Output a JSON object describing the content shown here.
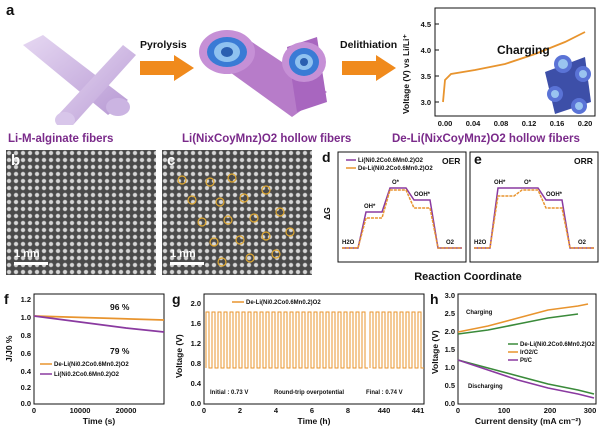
{
  "panels": {
    "a": "a",
    "b": "b",
    "c": "c",
    "d": "d",
    "e": "e",
    "f": "f",
    "g": "g",
    "h": "h"
  },
  "row_a": {
    "step1_label": "Pyrolysis",
    "step2_label": "Delithiation",
    "caption1": "Li-M-alginate fibers",
    "caption2": "Li(NixCoyMnz)O2 hollow fibers",
    "caption3": "De-Li(NixCoyMnz)O2 hollow fibers",
    "inset_title": "Charging",
    "inset_ylabel": "Voltage (V) vs Li/Li⁺",
    "inset_yticks": [
      "3.0",
      "3.5",
      "4.0",
      "4.5"
    ],
    "inset_xticks": [
      "0.00",
      "0.04",
      "0.08",
      "0.12",
      "0.16",
      "0.20"
    ]
  },
  "tem": {
    "scale_b": "1 nm",
    "scale_c": "1 nm"
  },
  "row_de": {
    "oer_label": "OER",
    "orr_label": "ORR",
    "ylabel": "ΔG",
    "xlabel": "Reaction Coordinate",
    "legend": [
      "Li(Ni0.2Co0.6Mn0.2)O2",
      "De-Li(Ni0.2Co0.6Mn0.2)O2"
    ],
    "oer_species": [
      "H2O",
      "OH*",
      "O*",
      "OOH*",
      "O2"
    ],
    "orr_species": [
      "H2O",
      "OH*",
      "O*",
      "OOH*",
      "O2"
    ]
  },
  "panel_f": {
    "ylabel": "J/J0 %",
    "xlabel": "Time (s)",
    "yticks": [
      "0.0",
      "0.2",
      "0.4",
      "0.6",
      "0.8",
      "1.0",
      "1.2"
    ],
    "xticks": [
      "0",
      "10000",
      "20000"
    ],
    "ann1": "96 %",
    "ann2": "79 %",
    "legend": [
      "De-Li(Ni0.2Co0.6Mn0.2)O2",
      "Li(Ni0.2Co0.6Mn0.2)O2"
    ]
  },
  "panel_g": {
    "ylabel": "Voltage (V)",
    "xlabel": "Time (h)",
    "yticks": [
      "0.0",
      "0.4",
      "0.8",
      "1.2",
      "1.6",
      "2.0"
    ],
    "xticks": [
      "0",
      "2",
      "4",
      "6",
      "8",
      "440",
      "441"
    ],
    "xtick2": "440",
    "legend": "De-Li(Ni0.2Co0.6Mn0.2)O2",
    "initial": "Initial : 0.73 V",
    "mid": "Round-trip overpotential",
    "final": "Final : 0.74 V"
  },
  "panel_h": {
    "ylabel": "Voltage (V)",
    "xlabel": "Current density (mA cm⁻²)",
    "yticks": [
      "0.0",
      "0.5",
      "1.0",
      "1.5",
      "2.0",
      "2.5",
      "3.0"
    ],
    "xticks": [
      "0",
      "100",
      "200",
      "300"
    ],
    "charging": "Charging",
    "discharging": "Discharging",
    "legend": [
      "De-Li(Ni0.2Co0.6Mn0.2)O2",
      "IrO2/C",
      "Pt/C"
    ]
  },
  "colors": {
    "orange": "#e8942e",
    "purple": "#8a3aa0",
    "green": "#3a8a3a",
    "caption": "#7a2a8a"
  }
}
